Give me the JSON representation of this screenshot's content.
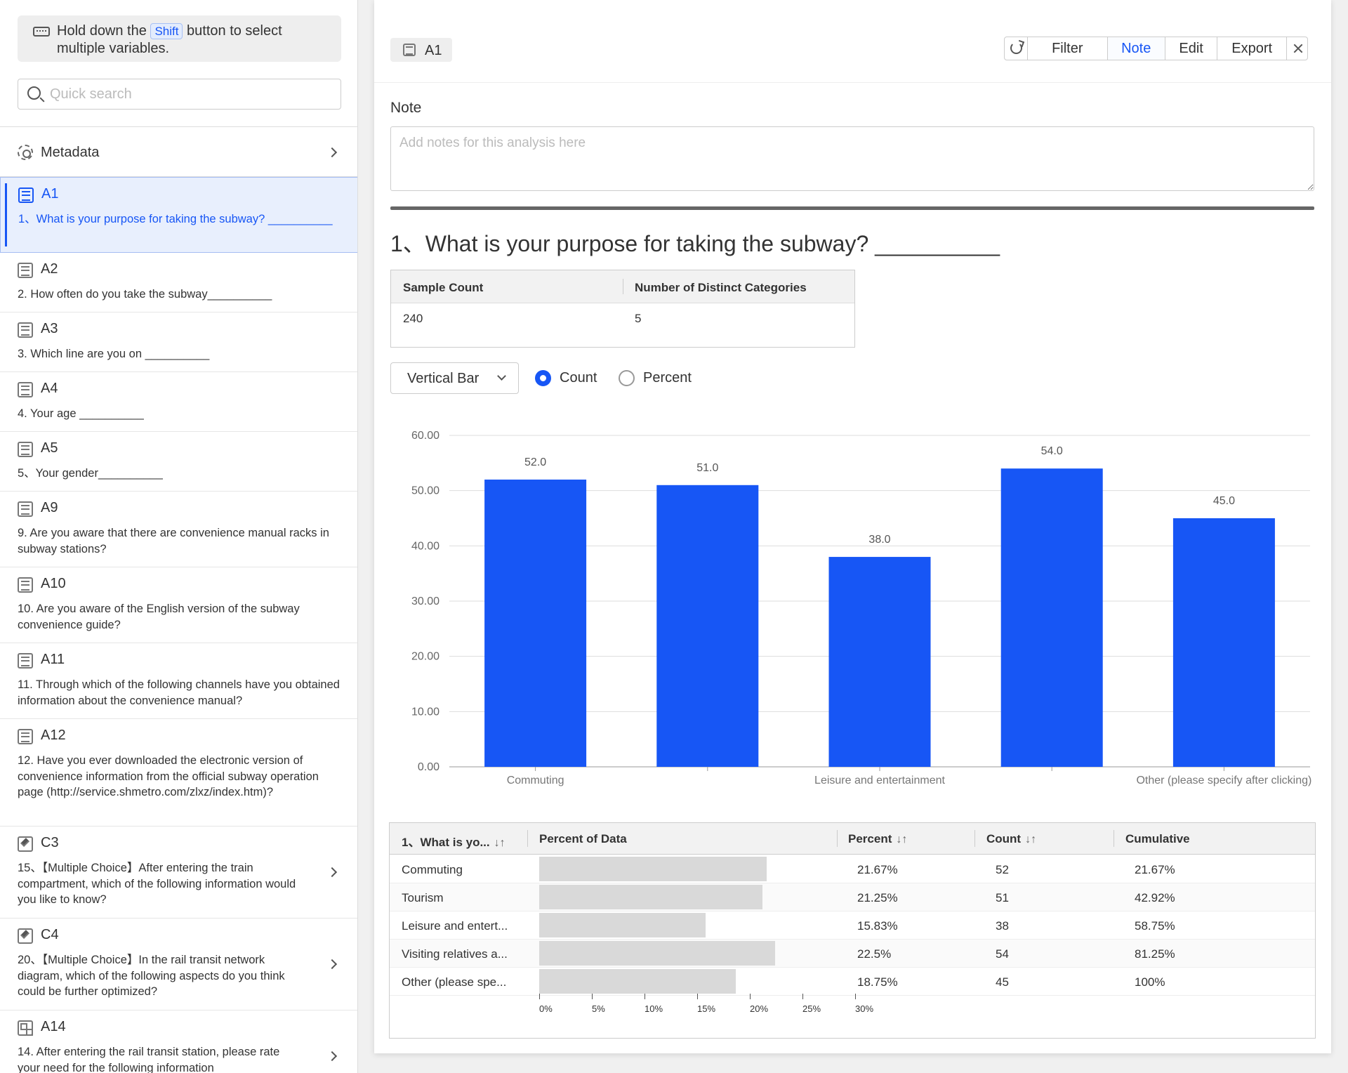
{
  "sidebar": {
    "hint_before": "Hold down the",
    "hint_key": "Shift",
    "hint_after": "button to select multiple variables.",
    "search_placeholder": "Quick search",
    "metadata_label": "Metadata",
    "items": [
      {
        "code": "A1",
        "question": "1、What is your purpose for taking the subway? __________",
        "icon": "list-icon",
        "active": true
      },
      {
        "code": "A2",
        "question": "2. How often do you take the subway__________",
        "icon": "list-icon"
      },
      {
        "code": "A3",
        "question": "3. Which line are you on __________",
        "icon": "list-icon"
      },
      {
        "code": "A4",
        "question": "4. Your age __________",
        "icon": "list-icon"
      },
      {
        "code": "A5",
        "question": "5、Your gender__________",
        "icon": "list-icon"
      },
      {
        "code": "A9",
        "question": "9. Are you aware that there are convenience manual racks in subway stations?",
        "icon": "list-icon"
      },
      {
        "code": "A10",
        "question": "10. Are you aware of the English version of the subway convenience guide?",
        "icon": "list-icon"
      },
      {
        "code": "A11",
        "question": "11. Through which of the following channels have you obtained information about the convenience manual?",
        "icon": "list-icon"
      },
      {
        "code": "A12",
        "question": "12. Have you ever downloaded the electronic version of convenience information from the official subway operation page (http://service.shmetro.com/zlxz/index.htm)?",
        "icon": "list-icon"
      },
      {
        "code": "C3",
        "question": "15、【Multiple Choice】After entering the train compartment, which of the following information would you like to know?",
        "icon": "checkbox-icon"
      },
      {
        "code": "C4",
        "question": "20、【Multiple Choice】In the rail transit network diagram, which of the following aspects do you think could be further optimized?",
        "icon": "checkbox-icon"
      },
      {
        "code": "A14",
        "question": "14. After entering the rail transit station, please rate your need for the following information",
        "icon": "grid-icon"
      }
    ]
  },
  "main": {
    "tag": "A1",
    "toolbar": {
      "filter": "Filter",
      "note": "Note",
      "edit": "Edit",
      "export": "Export",
      "active": "Note"
    },
    "note_label": "Note",
    "note_placeholder": "Add notes for this analysis here",
    "question_title": "1、What is your purpose for taking the subway? __________",
    "stats": {
      "h_sample": "Sample Count",
      "h_distinct": "Number of Distinct Categories",
      "sample": "240",
      "distinct": "5"
    },
    "chart_type_select": "Vertical Bar",
    "radio_count": "Count",
    "radio_percent": "Percent",
    "radio_selected": "Count",
    "accent": "#1756f5",
    "table": {
      "headers": [
        "1、What is yo...",
        "Percent of Data",
        "Percent",
        "Count",
        "Cumulative"
      ],
      "rows": [
        {
          "label": "Commuting",
          "percent": "21.67%",
          "pct_value": 21.67,
          "count": "52",
          "cumulative": "21.67%"
        },
        {
          "label": "Tourism",
          "percent": "21.25%",
          "pct_value": 21.25,
          "count": "51",
          "cumulative": "42.92%"
        },
        {
          "label": "Leisure and entert...",
          "percent": "15.83%",
          "pct_value": 15.83,
          "count": "38",
          "cumulative": "58.75%"
        },
        {
          "label": "Visiting relatives a...",
          "percent": "22.5%",
          "pct_value": 22.5,
          "count": "54",
          "cumulative": "81.25%"
        },
        {
          "label": "Other (please spe...",
          "percent": "18.75%",
          "pct_value": 18.75,
          "count": "45",
          "cumulative": "100%"
        }
      ],
      "axis_ticks": [
        "0%",
        "5%",
        "10%",
        "15%",
        "20%",
        "25%",
        "30%"
      ]
    }
  },
  "chart_data": {
    "type": "bar",
    "categories": [
      "Commuting",
      "Tourism",
      "Leisure and entertainment",
      "Visiting relatives and friends",
      "Other (please specify after clicking)"
    ],
    "category_labels_shown": [
      "Commuting",
      "",
      "Leisure and entertainment",
      "",
      "Other (please specify after clicking)"
    ],
    "values": [
      52,
      51,
      38,
      54,
      45
    ],
    "value_labels": [
      "52.0",
      "51.0",
      "38.0",
      "54.0",
      "45.0"
    ],
    "y_ticks": [
      "0.00",
      "10.00",
      "20.00",
      "30.00",
      "40.00",
      "50.00",
      "60.00"
    ],
    "ylim": [
      0,
      60
    ],
    "grid": true,
    "color": "#1756f5"
  }
}
